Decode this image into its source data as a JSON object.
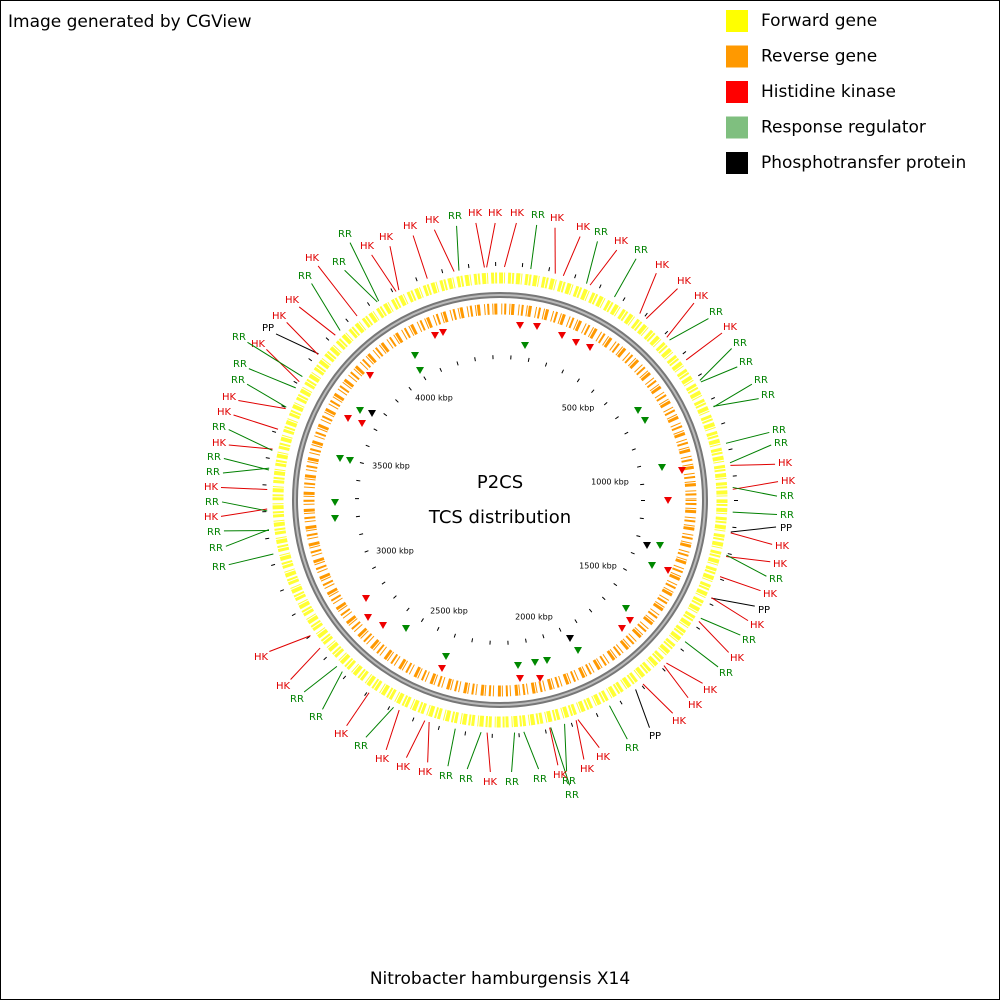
{
  "credit": "Image generated by CGView",
  "legend": [
    {
      "label": "Forward gene",
      "color": "#ffff00"
    },
    {
      "label": "Reverse gene",
      "color": "#ff9900"
    },
    {
      "label": "Histidine kinase",
      "color": "#ff0000"
    },
    {
      "label": "Response regulator",
      "color": "#7fbf7f"
    },
    {
      "label": "Phosphotransfer protein",
      "color": "#000000"
    }
  ],
  "center": {
    "title": "P2CS",
    "subtitle": "TCS distribution"
  },
  "ring_ticks": [
    "500 kbp",
    "1000 kbp",
    "1500 kbp",
    "2000 kbp",
    "2500 kbp",
    "3000 kbp",
    "3500 kbp",
    "4000 kbp"
  ],
  "label_colors": {
    "HK": "#e00000",
    "RR": "#008000",
    "PP": "#000000"
  },
  "features": [
    "HK",
    "RR",
    "HK",
    "HK",
    "RR",
    "HK",
    "RR",
    "HK",
    "HK",
    "HK",
    "RR",
    "HK",
    "RR",
    "RR",
    "RR",
    "RR",
    "RR",
    "RR",
    "HK",
    "HK",
    "RR",
    "RR",
    "PP",
    "HK",
    "HK",
    "RR",
    "HK",
    "PP",
    "HK",
    "RR",
    "HK",
    "RR",
    "HK",
    "HK",
    "HK",
    "PP",
    "RR",
    "HK",
    "HK",
    "RR",
    "RR",
    "HK",
    "RR",
    "RR",
    "HK",
    "RR",
    "RR",
    "HK",
    "HK",
    "HK",
    "RR",
    "HK",
    "RR",
    "RR",
    "HK",
    "HK",
    "RR",
    "RR",
    "RR",
    "HK",
    "RR",
    "HK",
    "RR",
    "RR",
    "HK",
    "RR",
    "HK",
    "HK",
    "RR",
    "RR",
    "HK",
    "RR",
    "PP",
    "HK",
    "HK",
    "RR",
    "HK",
    "RR",
    "RR",
    "HK",
    "HK",
    "HK",
    "HK",
    "RR",
    "HK",
    "HK"
  ],
  "organism": "Nitrobacter hamburgensis X14"
}
